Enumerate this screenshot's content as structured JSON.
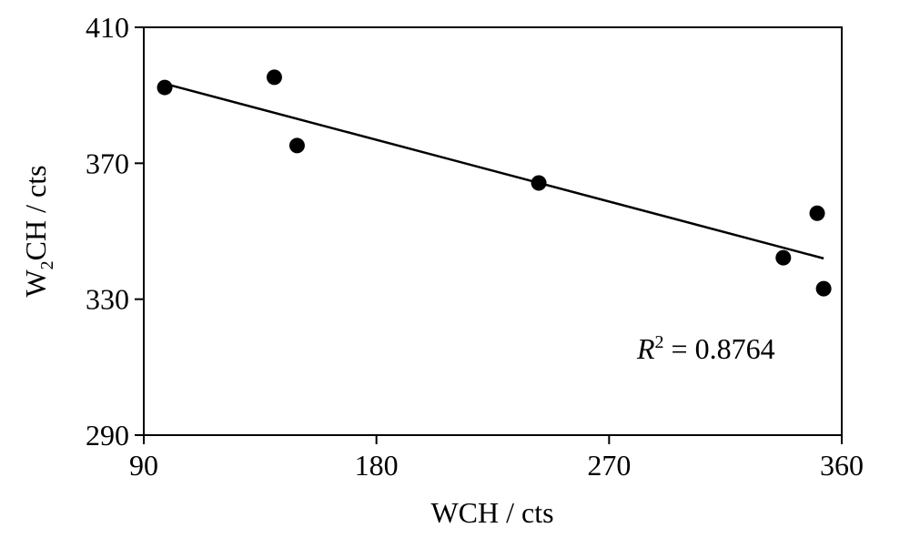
{
  "chart_data": {
    "type": "scatter",
    "title": "",
    "xlabel": "WCH / cts",
    "ylabel_main": "W",
    "ylabel_sub": "2",
    "ylabel_rest": "CH / cts",
    "xlim": [
      90,
      360
    ],
    "ylim": [
      290,
      410
    ],
    "xticks": [
      90,
      180,
      270,
      360
    ],
    "yticks": [
      290,
      330,
      370,
      410
    ],
    "grid": false,
    "points": [
      {
        "x": 98.1,
        "y": 392.3
      },
      {
        "x": 140.5,
        "y": 395.3
      },
      {
        "x": 149.3,
        "y": 375.2
      },
      {
        "x": 242.8,
        "y": 364.2
      },
      {
        "x": 337.4,
        "y": 342.2
      },
      {
        "x": 350.5,
        "y": 355.3
      },
      {
        "x": 353.0,
        "y": 333.1
      }
    ],
    "trendline": {
      "x": [
        98.1,
        353.0
      ],
      "y": [
        393.4,
        342.0
      ]
    },
    "annotation": {
      "r_label": "R",
      "r_sup": "2",
      "r_value": " = 0.8764"
    }
  }
}
